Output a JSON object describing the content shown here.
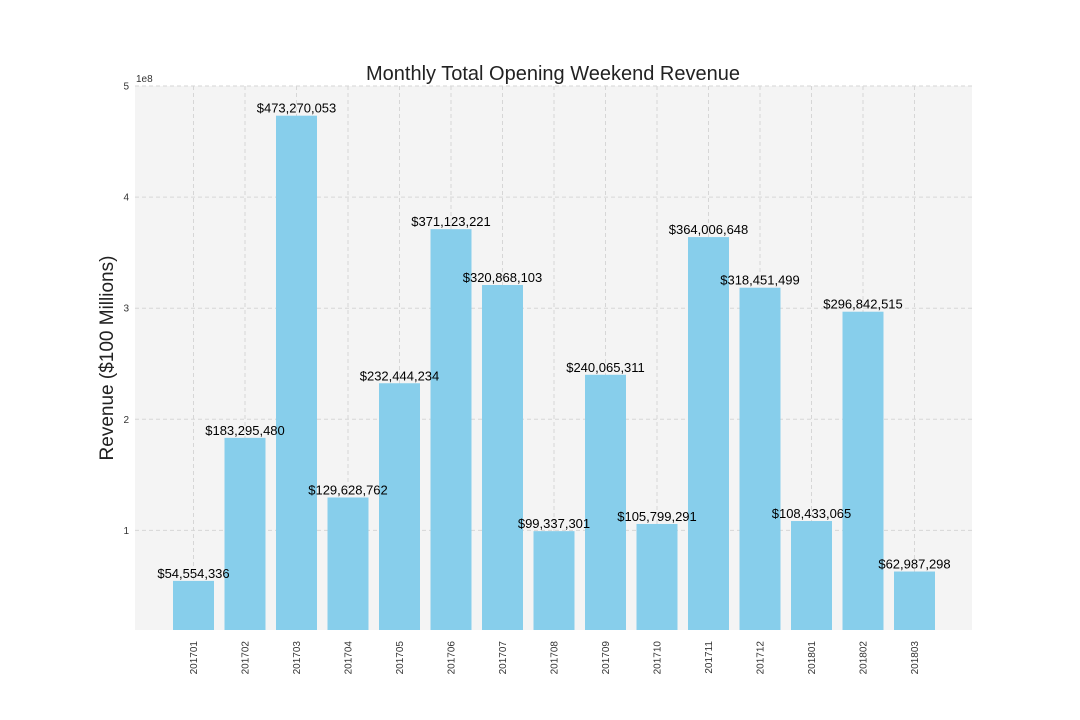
{
  "chart_data": {
    "type": "bar",
    "title": "Monthly Total Opening Weekend Revenue",
    "ylabel": "Revenue ($100 Millions)",
    "xlabel": "",
    "y_exponent_label": "1e8",
    "ylim": [
      0,
      500000000
    ],
    "y_ticks": [
      1,
      2,
      3,
      4,
      5
    ],
    "grid": true,
    "bar_color": "#87CEEB",
    "plot_background": "#f4f4f4",
    "categories": [
      "201701",
      "201702",
      "201703",
      "201704",
      "201705",
      "201706",
      "201707",
      "201708",
      "201709",
      "201710",
      "201711",
      "201712",
      "201801",
      "201802",
      "201803"
    ],
    "values": [
      54554336,
      183295480,
      473270053,
      129628762,
      232444234,
      371123221,
      320868103,
      99337301,
      240065311,
      105799291,
      364006648,
      318451499,
      108433065,
      296842515,
      62987298
    ],
    "data_labels": [
      "$54,554,336",
      "$183,295,480",
      "$473,270,053",
      "$129,628,762",
      "$232,444,234",
      "$371,123,221",
      "$320,868,103",
      "$99,337,301",
      "$240,065,311",
      "$105,799,291",
      "$364,006,648",
      "$318,451,499",
      "$108,433,065",
      "$296,842,515",
      "$62,987,298"
    ]
  }
}
